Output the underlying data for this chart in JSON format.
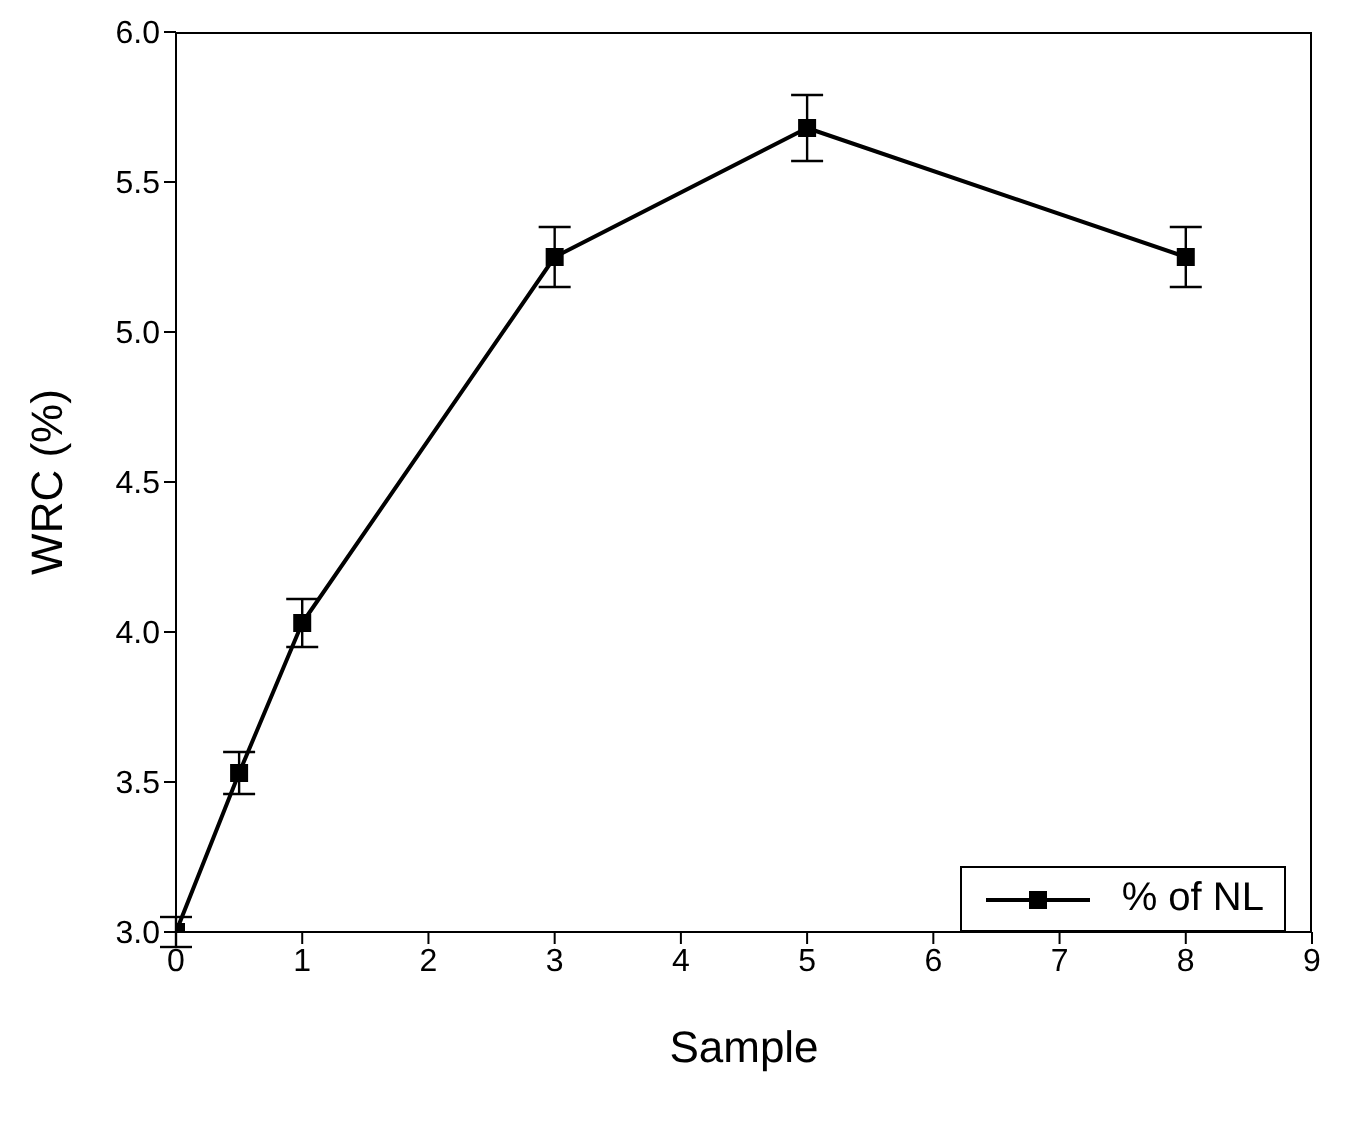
{
  "chart_data": {
    "type": "line",
    "xlabel": "Sample",
    "ylabel": "WRC (%)",
    "x": [
      0,
      0.5,
      1,
      3,
      5,
      8
    ],
    "series": [
      {
        "name": "% of NL",
        "color": "#000000",
        "values": [
          3.0,
          3.53,
          4.03,
          5.25,
          5.68,
          5.25
        ],
        "errors": [
          0.05,
          0.07,
          0.08,
          0.1,
          0.11,
          0.1
        ]
      }
    ],
    "xlim": [
      0,
      9
    ],
    "xticks": [
      0,
      1,
      2,
      3,
      4,
      5,
      6,
      7,
      8,
      9
    ],
    "ylim": [
      3.0,
      6.0
    ],
    "yticks": [
      {
        "value": 3.0,
        "label": "3.0"
      },
      {
        "value": 3.5,
        "label": "3.5"
      },
      {
        "value": 4.0,
        "label": "4.0"
      },
      {
        "value": 4.5,
        "label": "4.5"
      },
      {
        "value": 5.0,
        "label": "5.0"
      },
      {
        "value": 5.5,
        "label": "5.5"
      },
      {
        "value": 6.0,
        "label": "6.0"
      }
    ],
    "marker": "square",
    "line_style": "solid",
    "legend": "bottom right",
    "grid": false
  }
}
